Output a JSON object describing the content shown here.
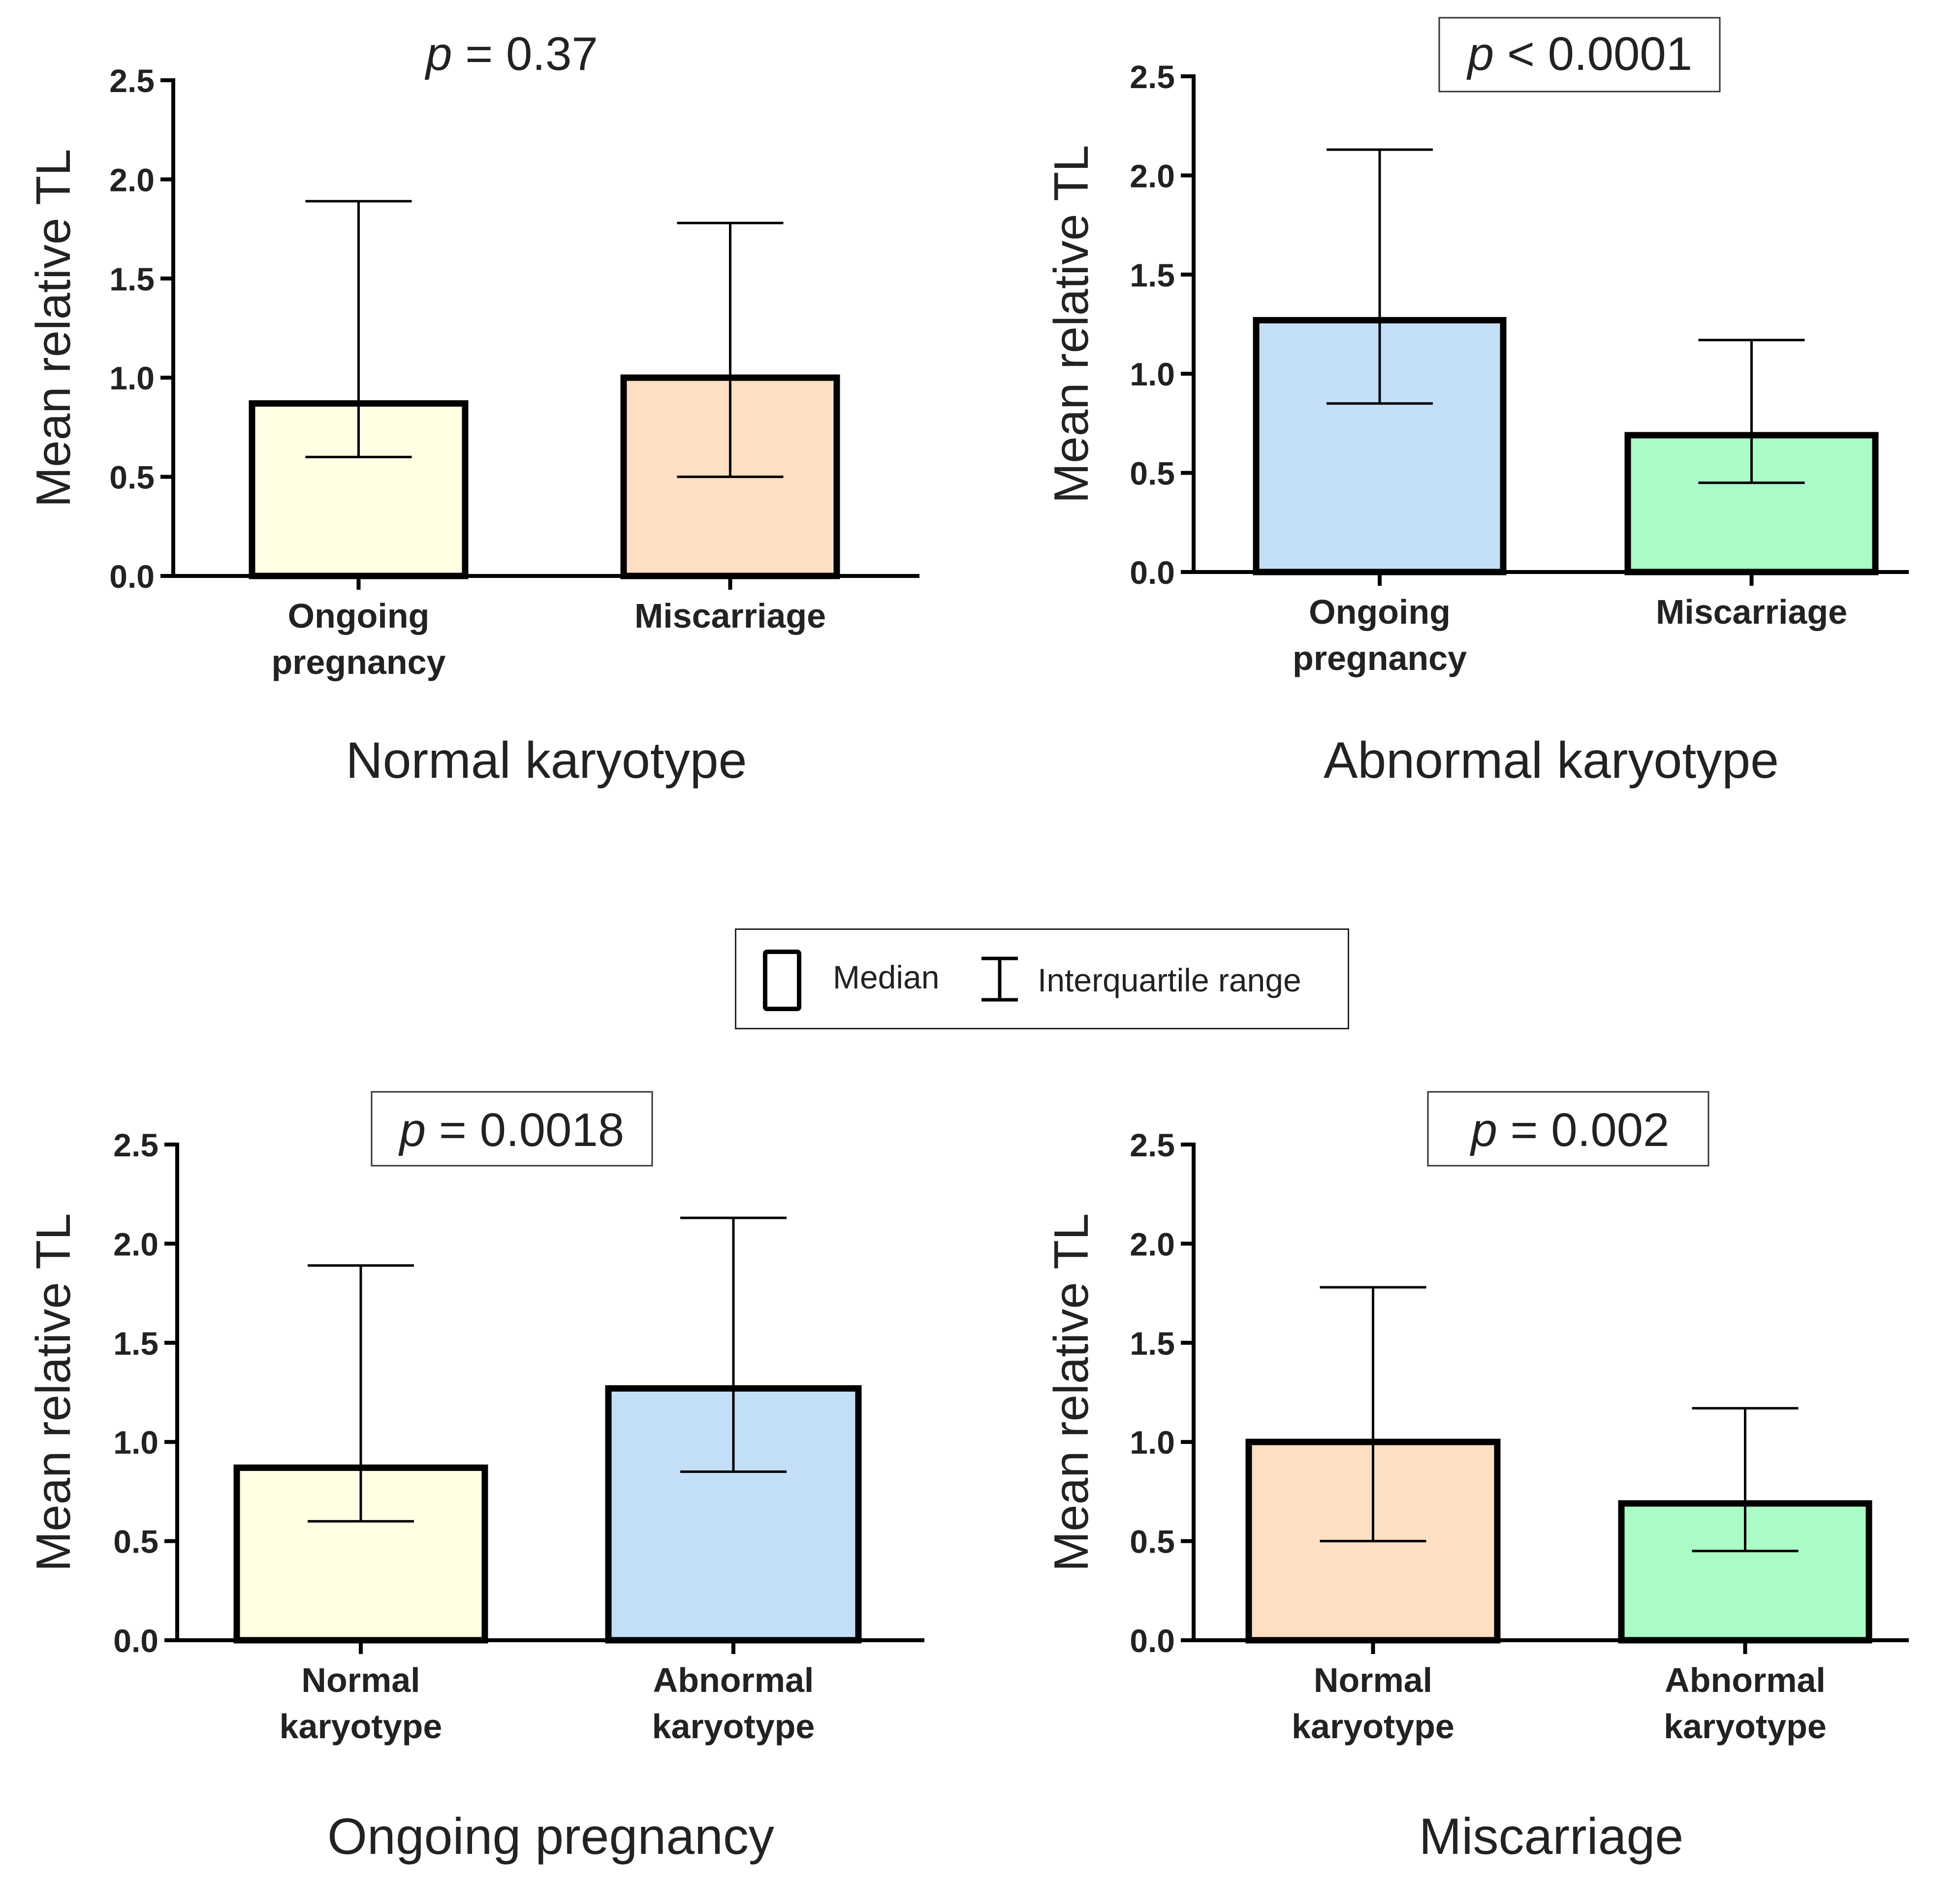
{
  "y_axis_label": "Mean relative TL",
  "y_ticks": [
    "0.0",
    "0.5",
    "1.0",
    "1.5",
    "2.0",
    "2.5"
  ],
  "legend": {
    "median": "Median",
    "iqr": "Interquartile range"
  },
  "chart_data": [
    {
      "type": "bar",
      "title": "Normal karyotype",
      "p_label": "p = 0.37",
      "p_boxed": false,
      "ylabel": "Mean relative TL",
      "ylim": [
        0,
        2.5
      ],
      "categories": [
        [
          "Ongoing",
          "pregnancy"
        ],
        [
          "Miscarriage"
        ]
      ],
      "values": [
        0.87,
        1.0
      ],
      "iqr_low": [
        0.6,
        0.5
      ],
      "iqr_high": [
        1.89,
        1.78
      ],
      "colors": [
        "#ffffe4",
        "#ffdfc2"
      ]
    },
    {
      "type": "bar",
      "title": "Abnormal karyotype",
      "p_label": "p < 0.0001",
      "p_boxed": true,
      "ylabel": "Mean relative TL",
      "ylim": [
        0,
        2.5
      ],
      "categories": [
        [
          "Ongoing",
          "pregnancy"
        ],
        [
          "Miscarriage"
        ]
      ],
      "values": [
        1.27,
        0.69
      ],
      "iqr_low": [
        0.85,
        0.45
      ],
      "iqr_high": [
        2.13,
        1.17
      ],
      "colors": [
        "#c3dff8",
        "#aafbc6"
      ]
    },
    {
      "type": "bar",
      "title": "Ongoing pregnancy",
      "p_label": "p = 0.0018",
      "p_boxed": true,
      "ylabel": "Mean relative TL",
      "ylim": [
        0,
        2.5
      ],
      "categories": [
        [
          "Normal",
          "karyotype"
        ],
        [
          "Abnormal",
          "karyotype"
        ]
      ],
      "values": [
        0.87,
        1.27
      ],
      "iqr_low": [
        0.6,
        0.85
      ],
      "iqr_high": [
        1.89,
        2.13
      ],
      "colors": [
        "#ffffe4",
        "#c3dff8"
      ]
    },
    {
      "type": "bar",
      "title": "Miscarriage",
      "p_label": "p = 0.002",
      "p_boxed": true,
      "ylabel": "Mean relative TL",
      "ylim": [
        0,
        2.5
      ],
      "categories": [
        [
          "Normal",
          "karyotype"
        ],
        [
          "Abnormal",
          "karyotype"
        ]
      ],
      "values": [
        1.0,
        0.69
      ],
      "iqr_low": [
        0.5,
        0.45
      ],
      "iqr_high": [
        1.78,
        1.17
      ],
      "colors": [
        "#ffdfc2",
        "#aafbc6"
      ]
    }
  ]
}
